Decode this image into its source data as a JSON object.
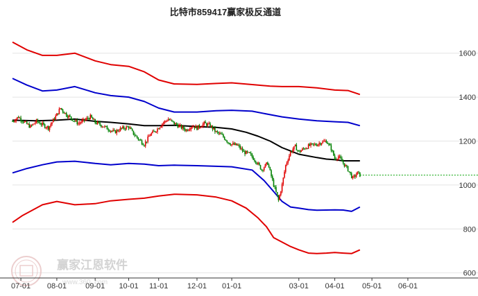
{
  "chart_data": {
    "type": "line",
    "title": "比特市859417赢家极反通道",
    "watermark": {
      "brand": "赢家江恩软件",
      "url": "www.360..com"
    },
    "colors": {
      "outer_band": "#e00000",
      "inner_band": "#0000cc",
      "middle_line": "#000000",
      "candle_up": "#e00000",
      "candle_down": "#008000",
      "last_price_line": "#00a000",
      "grid": "#e4e4e4"
    },
    "ylim": [
      580,
      1700
    ],
    "yticks": [
      600,
      800,
      1000,
      1200,
      1400,
      1600
    ],
    "ytick_labels": [
      "600",
      "800",
      "1000",
      "1200",
      "1400",
      "1600"
    ],
    "xlim": [
      0,
      337
    ],
    "xticks": [
      {
        "label": "07-01",
        "x": 7
      },
      {
        "label": "08-01",
        "x": 37
      },
      {
        "label": "09-01",
        "x": 69
      },
      {
        "label": "10-01",
        "x": 97
      },
      {
        "label": "11-01",
        "x": 122
      },
      {
        "label": "12-01",
        "x": 154
      },
      {
        "label": "01-01",
        "x": 183
      },
      {
        "label": "03-01",
        "x": 239
      },
      {
        "label": "04-01",
        "x": 269
      },
      {
        "label": "05-01",
        "x": 300
      },
      {
        "label": "06-01",
        "x": 330
      }
    ],
    "series": [
      {
        "role": "upper-red-band",
        "x": [
          0,
          12,
          25,
          37,
          52,
          69,
          82,
          97,
          110,
          122,
          135,
          154,
          170,
          183,
          200,
          215,
          225,
          239,
          254,
          269,
          280,
          290
        ],
        "y": [
          1650,
          1615,
          1590,
          1590,
          1600,
          1565,
          1548,
          1540,
          1515,
          1478,
          1460,
          1458,
          1462,
          1465,
          1457,
          1450,
          1448,
          1448,
          1442,
          1432,
          1430,
          1412
        ]
      },
      {
        "role": "upper-blue-band",
        "x": [
          0,
          12,
          25,
          37,
          52,
          69,
          82,
          97,
          110,
          122,
          135,
          154,
          170,
          183,
          200,
          215,
          225,
          239,
          254,
          269,
          280,
          290
        ],
        "y": [
          1485,
          1455,
          1428,
          1432,
          1448,
          1420,
          1407,
          1400,
          1380,
          1350,
          1332,
          1332,
          1338,
          1340,
          1336,
          1320,
          1310,
          1300,
          1292,
          1288,
          1285,
          1270
        ]
      },
      {
        "role": "lower-blue-band",
        "x": [
          0,
          12,
          25,
          37,
          52,
          69,
          82,
          97,
          110,
          122,
          135,
          154,
          170,
          183,
          200,
          210,
          218,
          225,
          232,
          239,
          247,
          254,
          262,
          269,
          276,
          283,
          290
        ],
        "y": [
          1055,
          1075,
          1092,
          1105,
          1108,
          1098,
          1092,
          1098,
          1095,
          1088,
          1090,
          1088,
          1085,
          1083,
          1068,
          1020,
          970,
          925,
          900,
          895,
          888,
          885,
          886,
          887,
          886,
          880,
          900
        ]
      },
      {
        "role": "lower-red-band",
        "x": [
          0,
          8,
          25,
          37,
          52,
          69,
          82,
          97,
          110,
          122,
          135,
          154,
          170,
          183,
          195,
          205,
          212,
          218,
          225,
          232,
          239,
          247,
          254,
          262,
          269,
          276,
          283,
          290
        ],
        "y": [
          830,
          860,
          910,
          925,
          910,
          915,
          928,
          935,
          940,
          950,
          958,
          955,
          945,
          928,
          895,
          850,
          810,
          760,
          740,
          720,
          705,
          690,
          688,
          690,
          693,
          690,
          688,
          705
        ]
      },
      {
        "role": "middle-black-line",
        "x": [
          0,
          20,
          37,
          52,
          69,
          82,
          97,
          110,
          122,
          135,
          154,
          170,
          183,
          195,
          205,
          215,
          225,
          232,
          239,
          254,
          262,
          269,
          276,
          283,
          290
        ],
        "y": [
          1295,
          1292,
          1295,
          1300,
          1290,
          1285,
          1278,
          1270,
          1270,
          1272,
          1266,
          1262,
          1255,
          1240,
          1222,
          1200,
          1170,
          1155,
          1140,
          1125,
          1118,
          1115,
          1110,
          1110,
          1110
        ]
      },
      {
        "role": "close-price",
        "x": [
          0,
          5,
          10,
          15,
          20,
          25,
          30,
          37,
          40,
          45,
          50,
          55,
          60,
          65,
          69,
          75,
          80,
          85,
          90,
          97,
          100,
          105,
          110,
          115,
          120,
          125,
          130,
          135,
          140,
          145,
          150,
          154,
          160,
          165,
          170,
          175,
          180,
          183,
          188,
          193,
          198,
          203,
          208,
          213,
          218,
          222,
          225,
          228,
          232,
          236,
          239,
          243,
          248,
          254,
          258,
          262,
          266,
          269,
          272,
          276,
          280,
          284,
          288,
          290
        ],
        "y": [
          1290,
          1310,
          1285,
          1265,
          1290,
          1275,
          1260,
          1320,
          1350,
          1320,
          1300,
          1280,
          1295,
          1310,
          1285,
          1270,
          1255,
          1240,
          1255,
          1265,
          1240,
          1210,
          1185,
          1230,
          1250,
          1280,
          1300,
          1280,
          1265,
          1250,
          1270,
          1260,
          1280,
          1270,
          1240,
          1225,
          1195,
          1185,
          1180,
          1150,
          1140,
          1110,
          1070,
          1100,
          1000,
          930,
          1000,
          1090,
          1150,
          1175,
          1150,
          1165,
          1180,
          1185,
          1195,
          1200,
          1165,
          1120,
          1130,
          1100,
          1070,
          1030,
          1055,
          1045
        ]
      }
    ],
    "last_price": 1045
  }
}
